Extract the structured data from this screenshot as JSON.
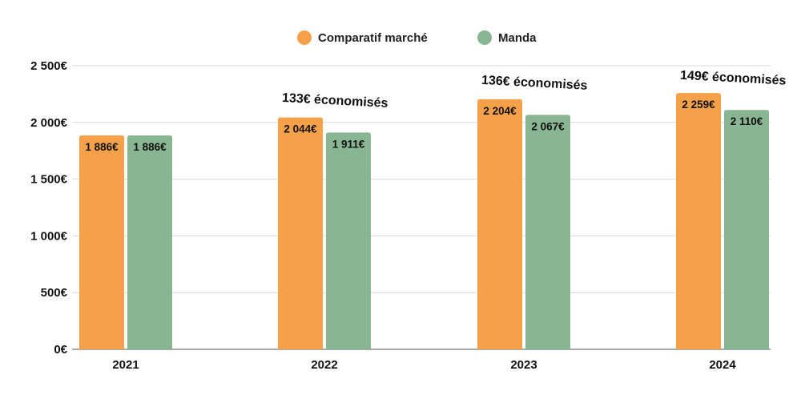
{
  "chart_data": {
    "type": "bar",
    "categories": [
      "2021",
      "2022",
      "2023",
      "2024"
    ],
    "series": [
      {
        "name": "Comparatif marché",
        "color": "#F4A14A",
        "values": [
          1886,
          2044,
          2204,
          2259
        ],
        "labels": [
          "1 886€",
          "2 044€",
          "2 204€",
          "2 259€"
        ]
      },
      {
        "name": "Manda",
        "color": "#88B592",
        "values": [
          1886,
          1911,
          2067,
          2110
        ],
        "labels": [
          "1 886€",
          "1 911€",
          "2 067€",
          "2 110€"
        ]
      }
    ],
    "ylim": [
      0,
      2500
    ],
    "yticks": [
      0,
      500,
      1000,
      1500,
      2000,
      2500
    ],
    "ytick_labels": [
      "0€",
      "500€",
      "1 000€",
      "1 500€",
      "2 000€",
      "2 500€"
    ],
    "grid": true,
    "legend_position": "top-center",
    "annotations": [
      {
        "category": "2022",
        "text": "133€ économisés"
      },
      {
        "category": "2023",
        "text": "136€ économisés"
      },
      {
        "category": "2024",
        "text": "149€ économisés"
      }
    ]
  }
}
